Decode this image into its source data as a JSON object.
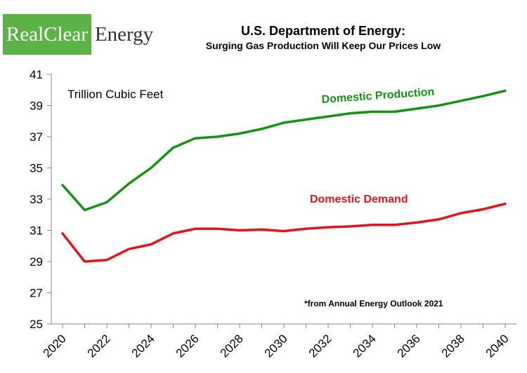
{
  "logo": {
    "part1": "RealClear",
    "part2": "Energy"
  },
  "title": "U.S. Department of Energy:",
  "subtitle": "Surging Gas Production Will Keep Our Prices Low",
  "colors": {
    "production": "#139311",
    "demand": "#e8121b",
    "logo_green": "#5cb246"
  },
  "chart_data": {
    "type": "line",
    "ylabel": "Trillion Cubic Feet",
    "ylim": [
      25,
      41
    ],
    "yticks": [
      25,
      27,
      29,
      31,
      33,
      35,
      37,
      39,
      41
    ],
    "xlim": [
      2020,
      2040
    ],
    "xticks": [
      2020,
      2022,
      2024,
      2026,
      2028,
      2030,
      2032,
      2034,
      2036,
      2038,
      2040
    ],
    "x": [
      2020,
      2021,
      2022,
      2023,
      2024,
      2025,
      2026,
      2027,
      2028,
      2029,
      2030,
      2031,
      2032,
      2033,
      2034,
      2035,
      2036,
      2037,
      2038,
      2039,
      2040
    ],
    "series": [
      {
        "name": "Domestic Production",
        "color": "#139311",
        "values": [
          33.9,
          32.3,
          32.8,
          34.0,
          35.0,
          36.3,
          36.9,
          37.0,
          37.2,
          37.5,
          37.9,
          38.1,
          38.3,
          38.5,
          38.6,
          38.6,
          38.8,
          39.0,
          39.3,
          39.6,
          39.95
        ]
      },
      {
        "name": "Domestic Demand",
        "color": "#e8121b",
        "values": [
          30.8,
          29.0,
          29.1,
          29.8,
          30.1,
          30.8,
          31.1,
          31.1,
          31.0,
          31.05,
          30.95,
          31.1,
          31.2,
          31.25,
          31.35,
          31.35,
          31.5,
          31.7,
          32.1,
          32.35,
          32.7
        ]
      }
    ],
    "annotation": "*from Annual Energy Outlook 2021",
    "grid": false
  }
}
